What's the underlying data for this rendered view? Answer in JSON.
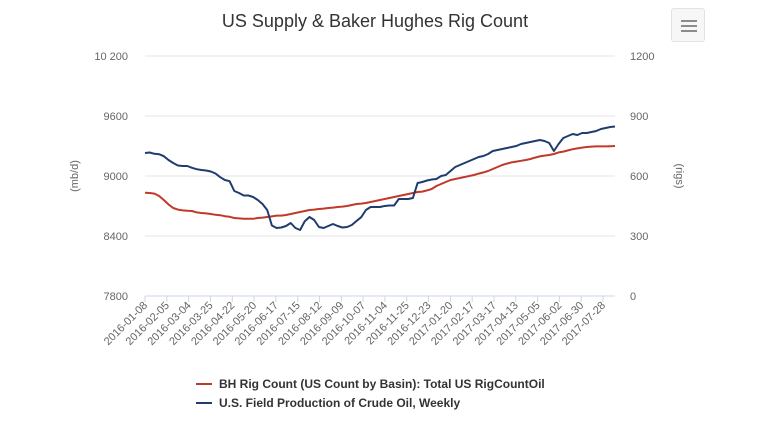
{
  "chart_data": {
    "type": "line",
    "title": "US Supply & Baker Hughes Rig Count",
    "ylabel_left": "(mb/d)",
    "ylabel_right": "(rigs)",
    "ylim_left": [
      7800,
      10200
    ],
    "ylim_right": [
      0,
      1200
    ],
    "yticks_left": [
      "7800",
      "8400",
      "9000",
      "9600",
      "10 200"
    ],
    "yticks_right": [
      "0",
      "300",
      "600",
      "900",
      "1200"
    ],
    "xticks": [
      "2016-01-08",
      "2016-02-05",
      "2016-03-04",
      "2016-03-25",
      "2016-04-22",
      "2016-05-20",
      "2016-06-17",
      "2016-07-15",
      "2016-08-12",
      "2016-09-09",
      "2016-10-07",
      "2016-11-04",
      "2016-11-25",
      "2016-12-23",
      "2017-01-20",
      "2017-02-17",
      "2017-03-17",
      "2017-04-13",
      "2017-05-05",
      "2017-06-02",
      "2017-06-30",
      "2017-07-28"
    ],
    "x_start": "2016-01-08",
    "x_step": "1 week",
    "grid": "horizontal",
    "legend_position": "bottom",
    "series": [
      {
        "name": "BH Rig Count (US Count by Basin): Total US RigCountOil",
        "axis": "right",
        "color": "#c0392b",
        "values": [
          516,
          515,
          512,
          500,
          480,
          458,
          440,
          432,
          428,
          426,
          425,
          418,
          415,
          413,
          410,
          406,
          404,
          399,
          396,
          390,
          388,
          386,
          386,
          386,
          390,
          392,
          395,
          398,
          402,
          402,
          405,
          410,
          415,
          420,
          425,
          430,
          432,
          435,
          437,
          440,
          442,
          445,
          447,
          450,
          455,
          460,
          462,
          465,
          470,
          475,
          480,
          485,
          490,
          495,
          500,
          505,
          510,
          515,
          520,
          522,
          528,
          535,
          550,
          560,
          570,
          580,
          585,
          590,
          595,
          600,
          605,
          612,
          618,
          625,
          635,
          645,
          655,
          662,
          668,
          672,
          676,
          680,
          685,
          692,
          698,
          702,
          705,
          710,
          718,
          722,
          728,
          734,
          738,
          742,
          745,
          747,
          748,
          748,
          748,
          749,
          750
        ]
      },
      {
        "name": "U.S. Field Production of Crude Oil, Weekly",
        "axis": "left",
        "color": "#1f3c6e",
        "values": [
          9230,
          9235,
          9222,
          9218,
          9198,
          9160,
          9130,
          9105,
          9100,
          9100,
          9082,
          9068,
          9060,
          9055,
          9045,
          9025,
          8988,
          8960,
          8948,
          8850,
          8830,
          8805,
          8805,
          8790,
          8760,
          8720,
          8660,
          8505,
          8480,
          8485,
          8500,
          8530,
          8480,
          8460,
          8548,
          8590,
          8560,
          8490,
          8480,
          8500,
          8520,
          8500,
          8485,
          8490,
          8510,
          8550,
          8588,
          8660,
          8690,
          8690,
          8690,
          8700,
          8705,
          8705,
          8770,
          8770,
          8770,
          8780,
          8930,
          8940,
          8955,
          8965,
          8970,
          9000,
          9010,
          9050,
          9090,
          9110,
          9130,
          9150,
          9170,
          9190,
          9200,
          9220,
          9250,
          9260,
          9270,
          9280,
          9290,
          9300,
          9320,
          9330,
          9340,
          9350,
          9360,
          9350,
          9330,
          9250,
          9320,
          9380,
          9400,
          9420,
          9410,
          9430,
          9430,
          9440,
          9450,
          9470,
          9480,
          9490,
          9495
        ]
      }
    ]
  }
}
